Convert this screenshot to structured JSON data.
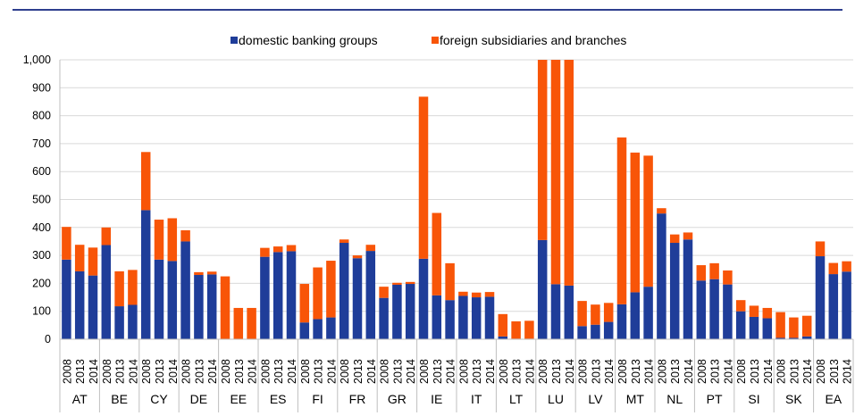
{
  "chart_data": {
    "type": "bar",
    "stacked": true,
    "title": "",
    "xlabel": "",
    "ylabel": "",
    "ylim": [
      0,
      1000
    ],
    "y_ticks": [
      "0",
      "100",
      "200",
      "300",
      "400",
      "500",
      "600",
      "700",
      "800",
      "900",
      "1,000"
    ],
    "grid": true,
    "legend_position": "top",
    "years": [
      "2008",
      "2013",
      "2014"
    ],
    "countries": [
      "AT",
      "BE",
      "CY",
      "DE",
      "EE",
      "ES",
      "FI",
      "FR",
      "GR",
      "IE",
      "IT",
      "LT",
      "LU",
      "LV",
      "MT",
      "NL",
      "PT",
      "SI",
      "SK",
      "EA"
    ],
    "series": [
      {
        "name": "domestic banking groups",
        "color": "#1f3d99",
        "values": [
          285,
          243,
          228,
          337,
          118,
          123,
          462,
          285,
          280,
          350,
          230,
          232,
          0,
          0,
          0,
          295,
          312,
          315,
          60,
          72,
          78,
          345,
          290,
          316,
          148,
          195,
          198,
          288,
          157,
          140,
          155,
          150,
          152,
          10,
          2,
          2,
          355,
          197,
          192,
          47,
          52,
          62,
          125,
          168,
          188,
          450,
          345,
          357,
          210,
          215,
          196,
          100,
          80,
          75,
          5,
          5,
          10,
          297,
          233,
          242
        ]
      },
      {
        "name": "foreign subsidiaries and branches",
        "color": "#f85508",
        "values": [
          117,
          95,
          100,
          63,
          125,
          125,
          208,
          143,
          153,
          40,
          10,
          10,
          225,
          112,
          112,
          32,
          20,
          22,
          138,
          185,
          203,
          12,
          10,
          22,
          40,
          7,
          7,
          580,
          295,
          132,
          15,
          17,
          17,
          80,
          62,
          64,
          645,
          803,
          808,
          90,
          72,
          68,
          597,
          500,
          469,
          19,
          30,
          25,
          55,
          57,
          50,
          40,
          40,
          37,
          92,
          73,
          74,
          53,
          40,
          37
        ]
      }
    ]
  }
}
